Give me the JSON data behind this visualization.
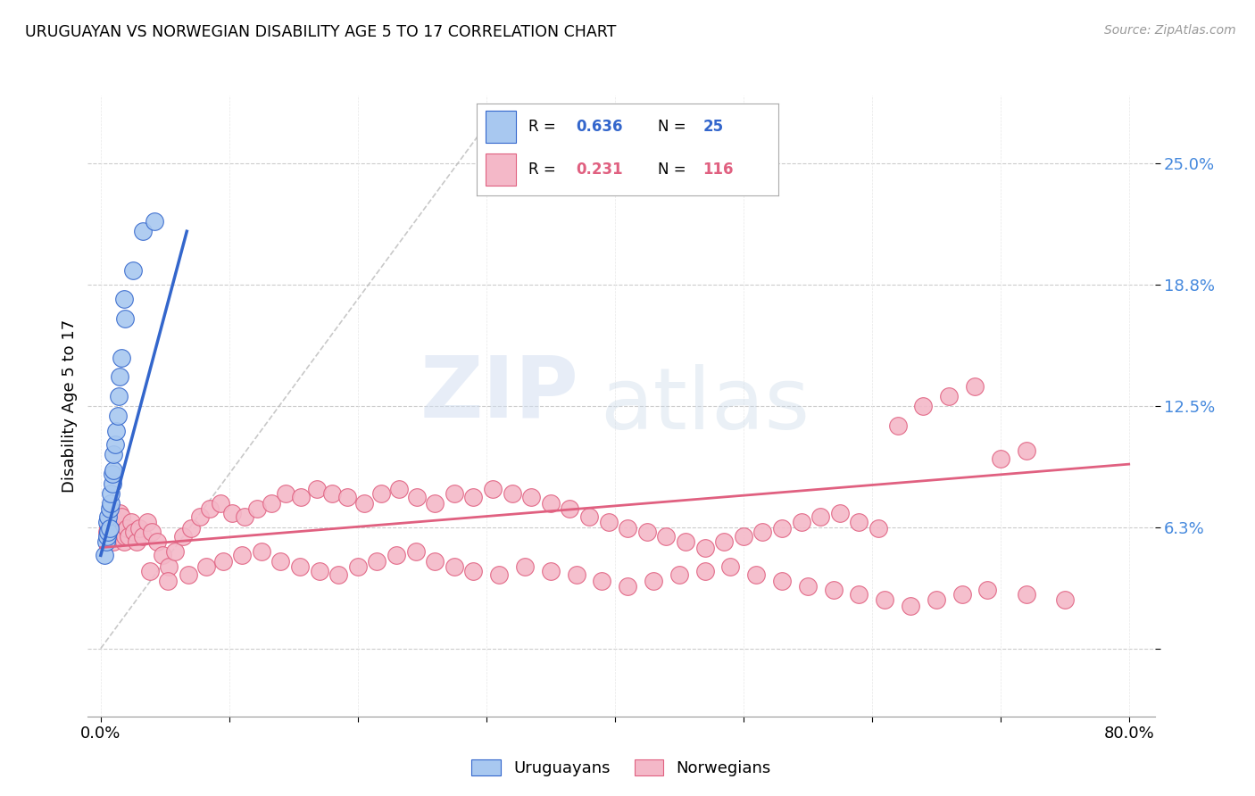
{
  "title": "URUGUAYAN VS NORWEGIAN DISABILITY AGE 5 TO 17 CORRELATION CHART",
  "source": "Source: ZipAtlas.com",
  "ylabel": "Disability Age 5 to 17",
  "watermark_zip": "ZIP",
  "watermark_atlas": "atlas",
  "uruguayan_color": "#a8c8f0",
  "norwegian_color": "#f4b8c8",
  "blue_line_color": "#3366cc",
  "pink_line_color": "#e06080",
  "dash_line_color": "#bbbbbb",
  "legend_label1": "Uruguayans",
  "legend_label2": "Norwegians",
  "r1": "0.636",
  "n1": "25",
  "r2": "0.231",
  "n2": "116",
  "ytick_vals": [
    0.0,
    0.0625,
    0.125,
    0.1875,
    0.25
  ],
  "ytick_labels": [
    "",
    "6.3%",
    "12.5%",
    "18.8%",
    "25.0%"
  ],
  "xtick_vals": [
    0.0,
    0.1,
    0.2,
    0.3,
    0.4,
    0.5,
    0.6,
    0.7,
    0.8
  ],
  "xtick_labels": [
    "0.0%",
    "",
    "",
    "",
    "",
    "",
    "",
    "",
    "80.0%"
  ],
  "xmin": -0.01,
  "xmax": 0.82,
  "ymin": -0.035,
  "ymax": 0.285,
  "blue_line_x": [
    0.0,
    0.067
  ],
  "blue_line_y": [
    0.048,
    0.215
  ],
  "pink_line_x": [
    0.0,
    0.8
  ],
  "pink_line_y": [
    0.052,
    0.095
  ],
  "dash_line_x": [
    0.0,
    0.3
  ],
  "dash_line_y": [
    0.0,
    0.27
  ],
  "uru_x": [
    0.003,
    0.004,
    0.005,
    0.005,
    0.006,
    0.006,
    0.007,
    0.007,
    0.008,
    0.008,
    0.009,
    0.009,
    0.01,
    0.01,
    0.011,
    0.012,
    0.013,
    0.014,
    0.015,
    0.016,
    0.019,
    0.025,
    0.033,
    0.042,
    0.018
  ],
  "uru_y": [
    0.048,
    0.055,
    0.058,
    0.065,
    0.06,
    0.068,
    0.062,
    0.072,
    0.075,
    0.08,
    0.085,
    0.09,
    0.092,
    0.1,
    0.105,
    0.112,
    0.12,
    0.13,
    0.14,
    0.15,
    0.17,
    0.195,
    0.215,
    0.22,
    0.18
  ],
  "nor_x": [
    0.005,
    0.006,
    0.007,
    0.008,
    0.009,
    0.01,
    0.011,
    0.012,
    0.013,
    0.014,
    0.015,
    0.016,
    0.017,
    0.018,
    0.019,
    0.02,
    0.022,
    0.024,
    0.026,
    0.028,
    0.03,
    0.033,
    0.036,
    0.04,
    0.044,
    0.048,
    0.053,
    0.058,
    0.064,
    0.07,
    0.077,
    0.085,
    0.093,
    0.102,
    0.112,
    0.122,
    0.133,
    0.144,
    0.156,
    0.168,
    0.18,
    0.192,
    0.205,
    0.218,
    0.232,
    0.246,
    0.26,
    0.275,
    0.29,
    0.305,
    0.32,
    0.335,
    0.35,
    0.365,
    0.38,
    0.395,
    0.41,
    0.425,
    0.44,
    0.455,
    0.47,
    0.485,
    0.5,
    0.515,
    0.53,
    0.545,
    0.56,
    0.575,
    0.59,
    0.605,
    0.038,
    0.052,
    0.068,
    0.082,
    0.095,
    0.11,
    0.125,
    0.14,
    0.155,
    0.17,
    0.185,
    0.2,
    0.215,
    0.23,
    0.245,
    0.26,
    0.275,
    0.29,
    0.31,
    0.33,
    0.35,
    0.37,
    0.39,
    0.41,
    0.43,
    0.45,
    0.47,
    0.49,
    0.51,
    0.53,
    0.55,
    0.57,
    0.59,
    0.61,
    0.63,
    0.65,
    0.67,
    0.69,
    0.72,
    0.75,
    0.62,
    0.64,
    0.66,
    0.68,
    0.7,
    0.72
  ],
  "nor_y": [
    0.06,
    0.062,
    0.058,
    0.065,
    0.068,
    0.055,
    0.06,
    0.058,
    0.062,
    0.065,
    0.07,
    0.068,
    0.06,
    0.055,
    0.058,
    0.062,
    0.058,
    0.065,
    0.06,
    0.055,
    0.062,
    0.058,
    0.065,
    0.06,
    0.055,
    0.048,
    0.042,
    0.05,
    0.058,
    0.062,
    0.068,
    0.072,
    0.075,
    0.07,
    0.068,
    0.072,
    0.075,
    0.08,
    0.078,
    0.082,
    0.08,
    0.078,
    0.075,
    0.08,
    0.082,
    0.078,
    0.075,
    0.08,
    0.078,
    0.082,
    0.08,
    0.078,
    0.075,
    0.072,
    0.068,
    0.065,
    0.062,
    0.06,
    0.058,
    0.055,
    0.052,
    0.055,
    0.058,
    0.06,
    0.062,
    0.065,
    0.068,
    0.07,
    0.065,
    0.062,
    0.04,
    0.035,
    0.038,
    0.042,
    0.045,
    0.048,
    0.05,
    0.045,
    0.042,
    0.04,
    0.038,
    0.042,
    0.045,
    0.048,
    0.05,
    0.045,
    0.042,
    0.04,
    0.038,
    0.042,
    0.04,
    0.038,
    0.035,
    0.032,
    0.035,
    0.038,
    0.04,
    0.042,
    0.038,
    0.035,
    0.032,
    0.03,
    0.028,
    0.025,
    0.022,
    0.025,
    0.028,
    0.03,
    0.028,
    0.025,
    0.115,
    0.125,
    0.13,
    0.135,
    0.098,
    0.102
  ]
}
